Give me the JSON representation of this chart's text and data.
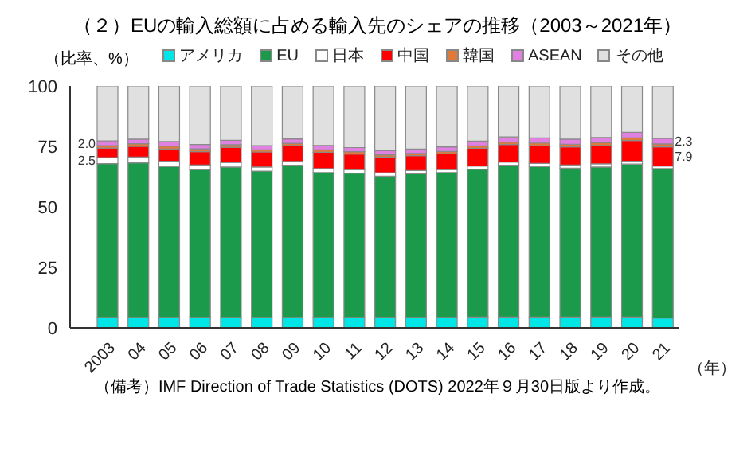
{
  "chart_data": {
    "type": "bar",
    "stacked": true,
    "title": "（２）EUの輸入総額に占める輸入先のシェアの推移（2003～2021年）",
    "ylabel": "（比率、%）",
    "xlabel": "（年）",
    "annotations": [
      "（備考）IMF Direction of Trade Statistics (DOTS) 2022年９月30日版より作成。"
    ],
    "categories": [
      "2003",
      "04",
      "05",
      "06",
      "07",
      "08",
      "09",
      "10",
      "11",
      "12",
      "13",
      "14",
      "15",
      "16",
      "17",
      "18",
      "19",
      "20",
      "21"
    ],
    "ylim": [
      0,
      100
    ],
    "yticks": [
      0,
      25,
      50,
      75,
      100
    ],
    "grid": false,
    "legend": "top",
    "series": [
      {
        "name": "アメリカ",
        "color": "#00e5e5",
        "values": [
          4.3,
          4.3,
          4.3,
          4.3,
          4.3,
          4.3,
          4.3,
          4.3,
          4.3,
          4.3,
          4.3,
          4.3,
          4.5,
          4.5,
          4.5,
          4.5,
          4.5,
          4.5,
          4.1
        ]
      },
      {
        "name": "EU",
        "color": "#1a9a4a",
        "values": [
          63.6,
          63.9,
          62.4,
          61.0,
          62.2,
          60.5,
          62.9,
          59.9,
          59.6,
          58.4,
          59.4,
          59.9,
          61.1,
          62.7,
          62.2,
          61.5,
          62.0,
          63.2,
          61.7
        ]
      },
      {
        "name": "日本",
        "color": "#ffffff",
        "values": [
          2.5,
          2.4,
          2.2,
          2.0,
          1.9,
          1.7,
          1.6,
          1.6,
          1.5,
          1.4,
          1.3,
          1.2,
          1.3,
          1.3,
          1.3,
          1.3,
          1.3,
          1.2,
          1.1
        ],
        "value_labels": [
          "2.5",
          null,
          null,
          null,
          null,
          null,
          null,
          null,
          null,
          null,
          null,
          null,
          null,
          null,
          null,
          null,
          null,
          null,
          null
        ]
      },
      {
        "name": "中国",
        "color": "#ff0000",
        "values": [
          3.9,
          4.4,
          5.0,
          5.5,
          6.2,
          6.2,
          6.6,
          6.8,
          6.4,
          6.5,
          6.2,
          6.6,
          7.3,
          7.3,
          7.3,
          7.5,
          7.6,
          8.5,
          7.9
        ],
        "value_labels": [
          null,
          null,
          null,
          null,
          null,
          null,
          null,
          null,
          null,
          null,
          null,
          null,
          null,
          null,
          null,
          null,
          null,
          null,
          "7.9"
        ]
      },
      {
        "name": "韓国",
        "color": "#e07a3a",
        "values": [
          1.0,
          1.1,
          1.2,
          1.2,
          1.1,
          0.9,
          0.9,
          1.0,
          1.0,
          0.9,
          0.9,
          0.9,
          1.0,
          1.0,
          1.1,
          1.1,
          1.1,
          1.1,
          1.2
        ]
      },
      {
        "name": "ASEAN",
        "color": "#e080e0",
        "values": [
          2.0,
          1.9,
          1.9,
          1.8,
          1.8,
          1.7,
          1.8,
          1.8,
          1.7,
          1.7,
          1.8,
          1.9,
          2.0,
          2.1,
          2.1,
          2.1,
          2.2,
          2.3,
          2.3
        ],
        "value_labels": [
          "2.0",
          null,
          null,
          null,
          null,
          null,
          null,
          null,
          null,
          null,
          null,
          null,
          null,
          null,
          null,
          null,
          null,
          null,
          "2.3"
        ]
      },
      {
        "name": "その他",
        "color": "#e0e0e0",
        "values": [
          22.7,
          22.0,
          23.0,
          24.2,
          22.5,
          24.7,
          21.9,
          24.6,
          25.5,
          26.8,
          26.1,
          25.2,
          22.8,
          21.1,
          21.5,
          22.0,
          21.3,
          19.2,
          21.7
        ]
      }
    ]
  }
}
